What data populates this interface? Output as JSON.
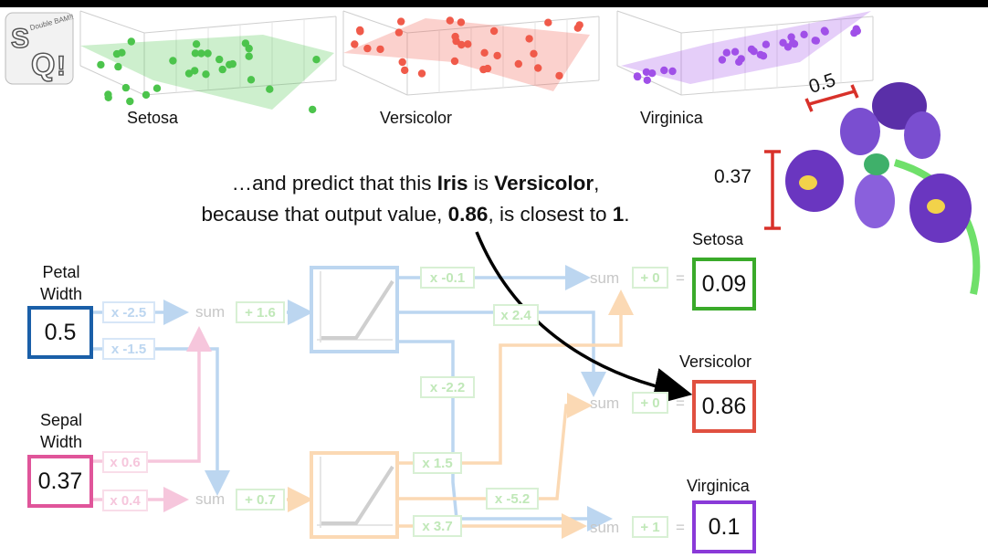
{
  "logo": {
    "text": "StatQuest",
    "sub": "Double BAM!!"
  },
  "plots": [
    {
      "label": "Setosa",
      "color": "#4cc44c"
    },
    {
      "label": "Versicolor",
      "color": "#f05a4a"
    },
    {
      "label": "Virginica",
      "color": "#a050e8"
    }
  ],
  "caption": {
    "l1_a": "…and predict that this ",
    "l1_b": "Iris",
    "l1_c": " is ",
    "l1_d": "Versicolor",
    "l1_e": ",",
    "l2_a": "because that output value, ",
    "l2_b": "0.86",
    "l2_c": ", is closest to ",
    "l2_d": "1",
    "l2_e": "."
  },
  "flower": {
    "petal_width_label": "0.5",
    "sepal_width_label": "0.37"
  },
  "inputs": {
    "petal": {
      "label_l1": "Petal",
      "label_l2": "Width",
      "value": "0.5",
      "color": "#1a5fa8"
    },
    "sepal": {
      "label_l1": "Sepal",
      "label_l2": "Width",
      "value": "0.37",
      "color": "#e0559a"
    }
  },
  "weights": {
    "w_petal_top": "x -2.5",
    "w_petal_bot": "x -1.5",
    "w_sepal_top": "x 0.6",
    "w_sepal_bot": "x 0.4",
    "b_top": "+ 1.6",
    "b_bot": "+ 0.7",
    "w_top_setosa": "x -0.1",
    "w_top_versicolor": "x 2.4",
    "w_top_virginica": "x -2.2",
    "w_bot_setosa": "x 1.5",
    "w_bot_versicolor": "x -5.2",
    "w_bot_virginica": "x 3.7",
    "b_setosa": "+ 0",
    "b_versicolor": "+ 0",
    "b_virginica": "+ 1"
  },
  "sum_label": "sum",
  "equals": "=",
  "outputs": [
    {
      "label": "Setosa",
      "value": "0.09",
      "color": "#3aaa2a"
    },
    {
      "label": "Versicolor",
      "value": "0.86",
      "color": "#e05040"
    },
    {
      "label": "Virginica",
      "value": "0.1",
      "color": "#8a3ad8"
    }
  ]
}
